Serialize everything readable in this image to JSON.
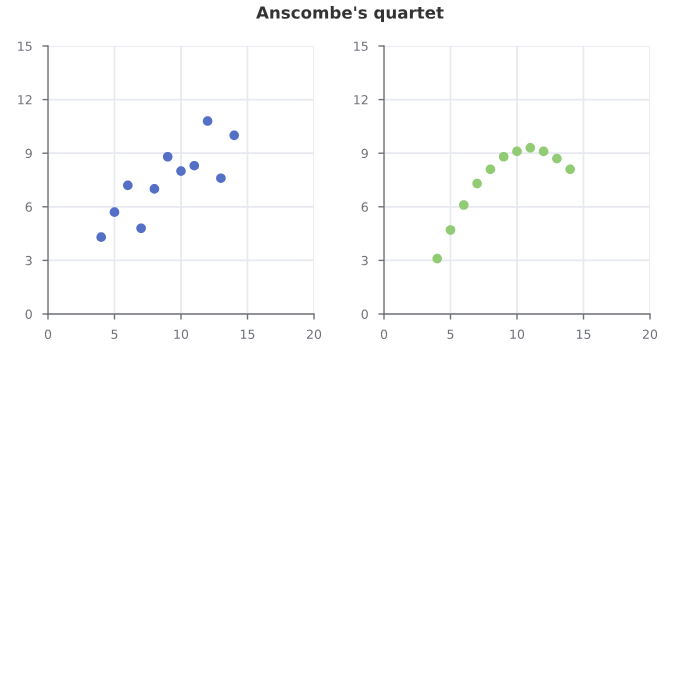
{
  "chart_data": [
    {
      "type": "scatter",
      "title": "Anscombe's quartet",
      "x": [
        10,
        8,
        13,
        9,
        11,
        14,
        6,
        4,
        12,
        7,
        5
      ],
      "series": [
        {
          "color": "#5470c6",
          "values": [
            8.0,
            7.0,
            7.6,
            8.8,
            8.3,
            10.0,
            7.2,
            4.3,
            10.8,
            4.8,
            5.7
          ]
        }
      ],
      "xlim": [
        0,
        20
      ],
      "xticks": [
        0,
        5,
        10,
        15,
        20
      ],
      "ylim": [
        0,
        15
      ],
      "yticks": [
        0,
        3,
        6,
        9,
        12,
        15
      ],
      "grid": true,
      "marker": "circle"
    },
    {
      "type": "scatter",
      "x": [
        10,
        8,
        13,
        9,
        11,
        14,
        6,
        4,
        12,
        7,
        5
      ],
      "series": [
        {
          "color": "#91cc75",
          "values": [
            9.1,
            8.1,
            8.7,
            8.8,
            9.3,
            8.1,
            6.1,
            3.1,
            9.1,
            7.3,
            4.7
          ]
        }
      ],
      "xlim": [
        0,
        20
      ],
      "xticks": [
        0,
        5,
        10,
        15,
        20
      ],
      "ylim": [
        0,
        15
      ],
      "yticks": [
        0,
        3,
        6,
        9,
        12,
        15
      ],
      "grid": true,
      "marker": "circle"
    }
  ]
}
